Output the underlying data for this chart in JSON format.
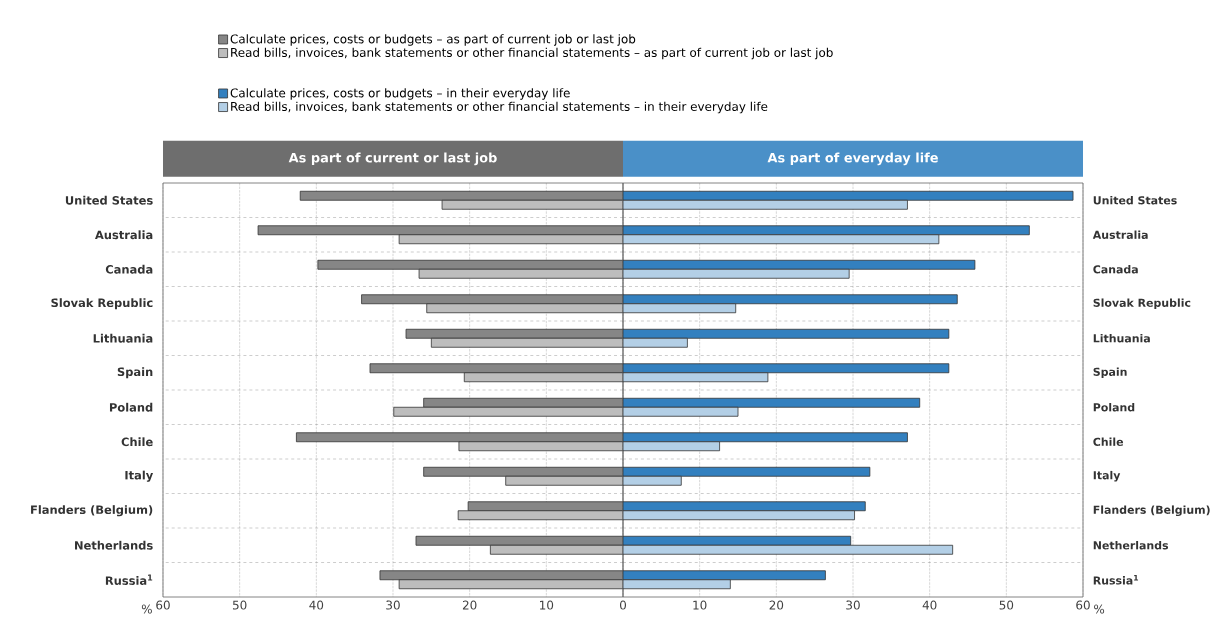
{
  "chart_data": [
    {
      "type": "bar",
      "orientation": "horizontal",
      "title": "As part of current or last job",
      "xlabel": "%",
      "categories": [
        "United States",
        "Australia",
        "Canada",
        "Slovak Republic",
        "Lithuania",
        "Spain",
        "Poland",
        "Chile",
        "Italy",
        "Flanders (Belgium)",
        "Netherlands",
        "Russia$^{1}$"
      ],
      "series": [
        {
          "name": "Calculate prices, costs or budgets – as part of current job or last job",
          "color": "#868686",
          "values": [
            42.1,
            47.6,
            39.8,
            34.1,
            28.3,
            33.0,
            26.0,
            42.6,
            26.0,
            20.2,
            27.0,
            31.7
          ]
        },
        {
          "name": "Read bills, invoices, bank statements or other financial statements – as part of current job or last job",
          "color": "#bdbdbd",
          "values": [
            23.6,
            29.2,
            26.6,
            25.6,
            25.0,
            20.7,
            29.9,
            21.4,
            15.3,
            21.5,
            17.3,
            29.2
          ]
        }
      ],
      "xlim": [
        60,
        0
      ],
      "xticks": [
        60,
        50,
        40,
        30,
        20,
        10
      ],
      "grid": true,
      "legend": "top"
    },
    {
      "type": "bar",
      "orientation": "horizontal",
      "title": "As part of everyday life",
      "xlabel": "%",
      "categories": [
        "United States",
        "Australia",
        "Canada",
        "Slovak Republic",
        "Lithuania",
        "Spain",
        "Poland",
        "Chile",
        "Italy",
        "Flanders (Belgium)",
        "Netherlands",
        "Russia$^{1}$"
      ],
      "series": [
        {
          "name": "Calculate prices, costs or budgets – in their everyday life",
          "color": "#3380bf",
          "values": [
            58.7,
            53.0,
            45.9,
            43.6,
            42.5,
            42.5,
            38.7,
            37.1,
            32.2,
            31.6,
            29.7,
            26.4
          ]
        },
        {
          "name": "Read bills, invoices, bank statements or other financial statements – in their everyday life",
          "color": "#b3cfe6",
          "values": [
            37.1,
            41.2,
            29.5,
            14.7,
            8.4,
            18.9,
            15.0,
            12.6,
            7.6,
            30.2,
            43.0,
            14.0
          ]
        }
      ],
      "xlim": [
        0,
        60
      ],
      "xticks": [
        0,
        10,
        20,
        30,
        40,
        50,
        60
      ],
      "grid": true,
      "legend": "top"
    }
  ]
}
